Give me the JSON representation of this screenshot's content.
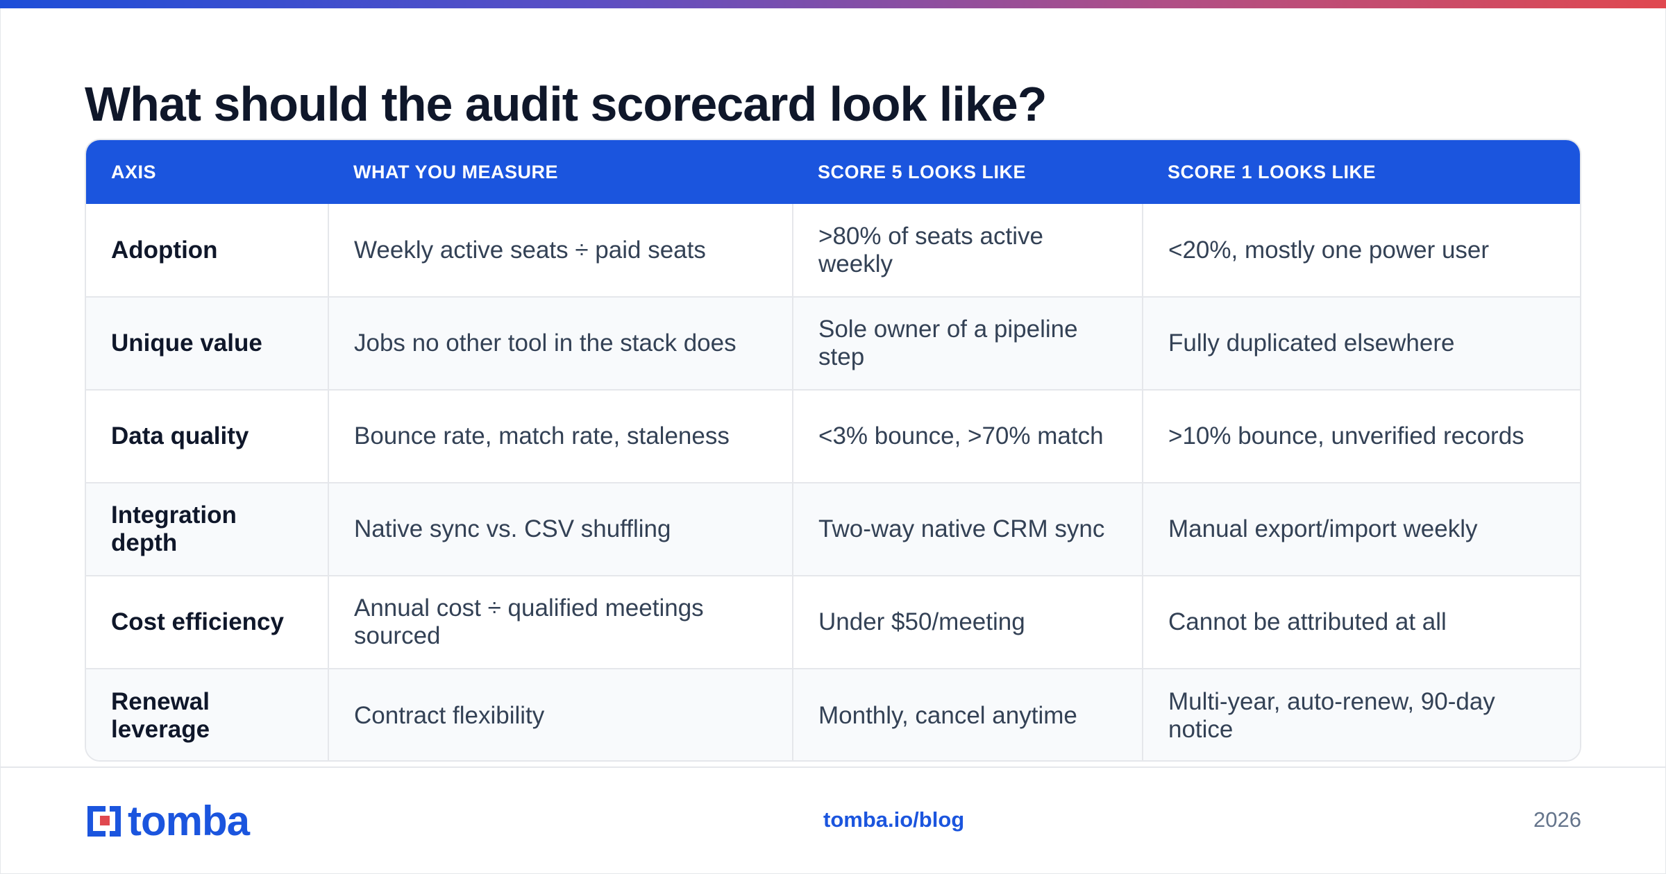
{
  "title": "What should the audit scorecard look like?",
  "table": {
    "headers": [
      "AXIS",
      "WHAT YOU MEASURE",
      "SCORE 5 LOOKS LIKE",
      "SCORE 1 LOOKS LIKE"
    ],
    "rows": [
      [
        "Adoption",
        "Weekly active seats ÷ paid seats",
        ">80% of seats active weekly",
        "<20%, mostly one power user"
      ],
      [
        "Unique value",
        "Jobs no other tool in the stack does",
        "Sole owner of a pipeline step",
        "Fully duplicated elsewhere"
      ],
      [
        "Data quality",
        "Bounce rate, match rate, staleness",
        "<3% bounce, >70% match",
        ">10% bounce, unverified records"
      ],
      [
        "Integration depth",
        "Native sync vs. CSV shuffling",
        "Two-way native CRM sync",
        "Manual export/import weekly"
      ],
      [
        "Cost efficiency",
        "Annual cost ÷ qualified meetings sourced",
        "Under $50/meeting",
        "Cannot be attributed at all"
      ],
      [
        "Renewal leverage",
        "Contract flexibility",
        "Monthly, cancel anytime",
        "Multi-year, auto-renew, 90-day notice"
      ]
    ]
  },
  "footer": {
    "logo_text": "tomba",
    "link": "tomba.io/blog",
    "year": "2026"
  },
  "colors": {
    "accent": "#1b55de",
    "logo_red": "#e0484f"
  }
}
